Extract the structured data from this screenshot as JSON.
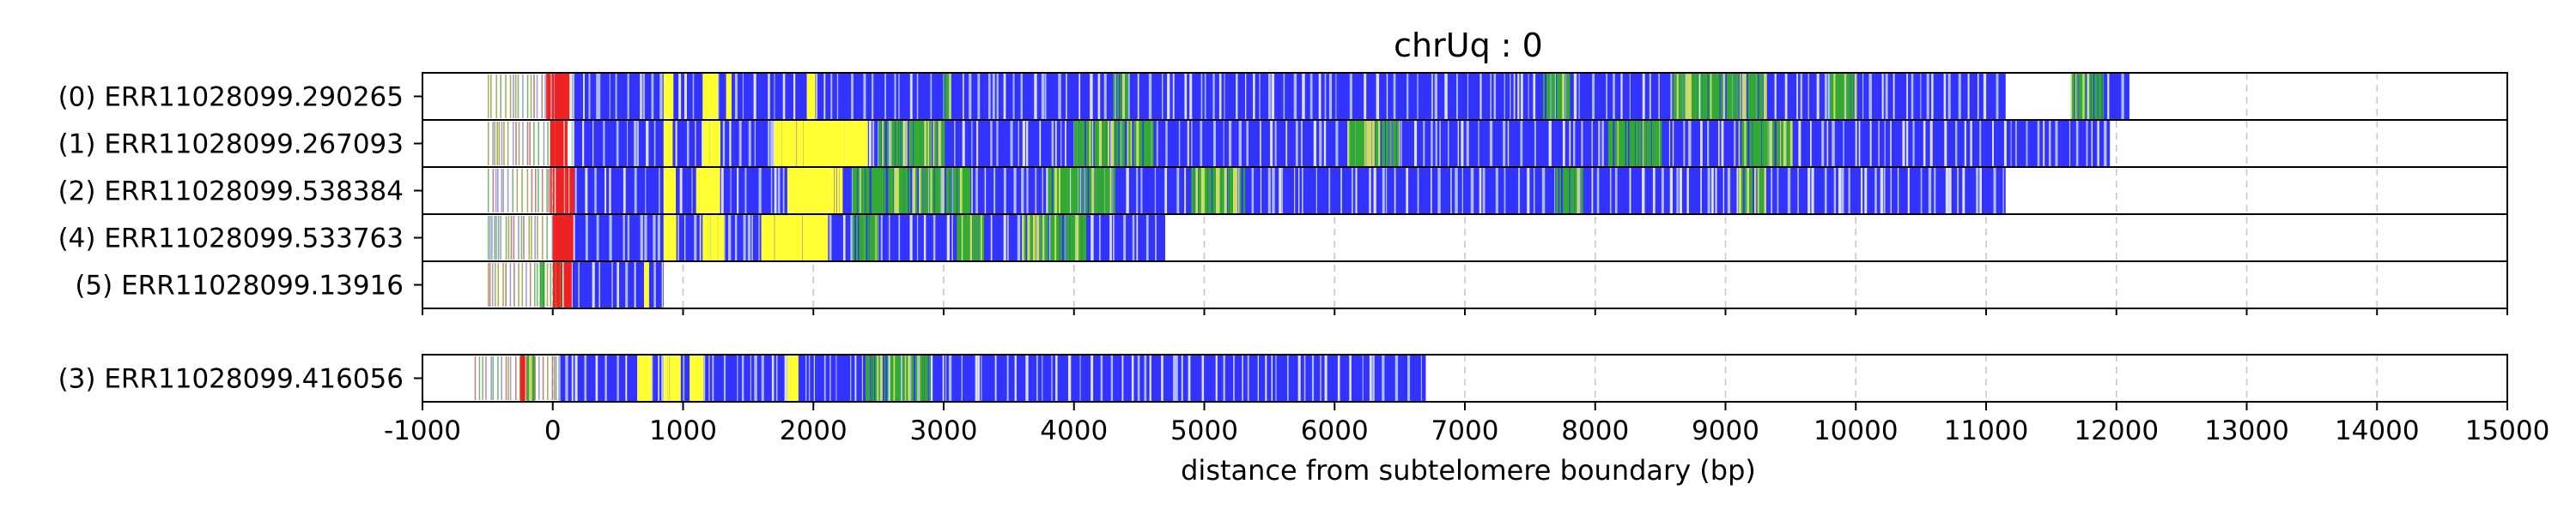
{
  "chart_data": {
    "type": "bar",
    "title": "chrUq : 0",
    "xlabel": "distance from subtelomere boundary (bp)",
    "ylabel": "",
    "xlim": [
      -1000,
      15000
    ],
    "x_ticks": [
      -1000,
      0,
      1000,
      2000,
      3000,
      4000,
      5000,
      6000,
      7000,
      8000,
      9000,
      10000,
      11000,
      12000,
      13000,
      14000,
      15000
    ],
    "x_tick_labels": [
      "-1000",
      "0",
      "1000",
      "2000",
      "3000",
      "4000",
      "5000",
      "6000",
      "7000",
      "8000",
      "9000",
      "10000",
      "11000",
      "12000",
      "13000",
      "14000",
      "15000"
    ],
    "grid": true,
    "colors": {
      "base": "#3333ff",
      "yellow": "#ffff33",
      "green": "#33aa33",
      "red": "#ee2222",
      "light": "#c8d4ff",
      "white": "#ffffff"
    },
    "panels": [
      {
        "reads": [
          {
            "label": "(0) ERR11028099.290265",
            "start": -500,
            "end": 12100,
            "blue_start": 150,
            "yellow": [
              [
                850,
                910
              ],
              [
                1150,
                1240
              ],
              [
                1950,
                2000
              ],
              [
                1330,
                1360
              ]
            ],
            "green": [
              [
                7600,
                7800
              ],
              [
                8600,
                9300
              ],
              [
                9800,
                10000
              ],
              [
                11650,
                11900
              ],
              [
                4300,
                4400
              ],
              [
                3000,
                3050
              ]
            ],
            "red": [
              [
                -50,
                120
              ]
            ],
            "gaps": [
              [
                11150,
                11650
              ]
            ]
          },
          {
            "label": "(1) ERR11028099.267093",
            "start": -500,
            "end": 11950,
            "blue_start": 150,
            "yellow": [
              [
                850,
                900
              ],
              [
                1150,
                1260
              ],
              [
                1700,
                2400
              ]
            ],
            "green": [
              [
                2500,
                3000
              ],
              [
                4000,
                4600
              ],
              [
                6100,
                6500
              ],
              [
                8100,
                8500
              ],
              [
                9100,
                9500
              ]
            ],
            "red": [
              [
                -20,
                100
              ]
            ],
            "gaps": []
          },
          {
            "label": "(2) ERR11028099.538384",
            "start": -500,
            "end": 11150,
            "blue_start": 150,
            "yellow": [
              [
                850,
                920
              ],
              [
                1100,
                1250
              ],
              [
                1800,
                2200
              ]
            ],
            "green": [
              [
                2300,
                3200
              ],
              [
                3800,
                4300
              ],
              [
                4900,
                5300
              ],
              [
                7700,
                7900
              ],
              [
                9100,
                9300
              ]
            ],
            "red": [
              [
                -20,
                150
              ]
            ],
            "gaps": []
          },
          {
            "label": "(4) ERR11028099.533763",
            "start": -500,
            "end": 4700,
            "blue_start": 150,
            "yellow": [
              [
                850,
                920
              ],
              [
                1150,
                1300
              ],
              [
                1600,
                2100
              ]
            ],
            "green": [
              [
                2300,
                2500
              ],
              [
                3100,
                3300
              ],
              [
                3600,
                4100
              ]
            ],
            "red": [
              [
                0,
                130
              ]
            ],
            "gaps": []
          },
          {
            "label": "(5) ERR11028099.13916",
            "start": -500,
            "end": 850,
            "blue_start": 130,
            "yellow": [
              [
                700,
                720
              ]
            ],
            "green": [
              [
                -100,
                -60
              ],
              [
                40,
                70
              ]
            ],
            "red": [
              [
                0,
                120
              ]
            ],
            "gaps": []
          }
        ]
      },
      {
        "reads": [
          {
            "label": "(3) ERR11028099.416056",
            "start": -600,
            "end": 6700,
            "blue_start": 50,
            "yellow": [
              [
                650,
                750
              ],
              [
                850,
                950
              ],
              [
                1050,
                1150
              ],
              [
                1800,
                1860
              ]
            ],
            "green": [
              [
                2400,
                2900
              ],
              [
                -200,
                -150
              ]
            ],
            "red": [
              [
                -250,
                -230
              ]
            ],
            "gaps": []
          }
        ]
      }
    ]
  }
}
